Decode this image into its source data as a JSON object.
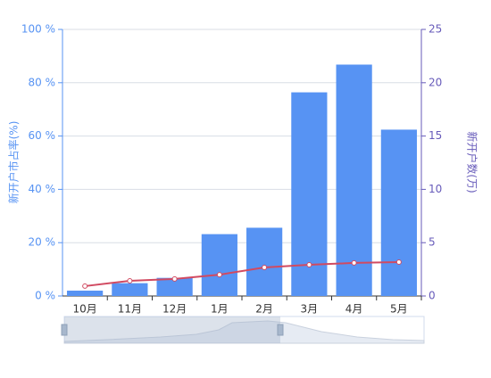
{
  "chart_data": {
    "type": "bar",
    "categories": [
      "10月",
      "11月",
      "12月",
      "1月",
      "2月",
      "3月",
      "4月",
      "5月"
    ],
    "y_label": "新开户市占率(%)",
    "y2_label": "新开户数(万)",
    "ylim": [
      0,
      100
    ],
    "yticks": [
      {
        "value": 0,
        "label": "0 %"
      },
      {
        "value": 20,
        "label": "20 %"
      },
      {
        "value": 40,
        "label": "40 %"
      },
      {
        "value": 60,
        "label": "60 %"
      },
      {
        "value": 80,
        "label": "80 %"
      },
      {
        "value": 100,
        "label": "100 %"
      }
    ],
    "y2lim": [
      0,
      25
    ],
    "y2ticks": [
      0,
      5,
      10,
      15,
      20,
      25
    ],
    "grid": true,
    "y_color": "#5793f3",
    "y2_color": "#675bba",
    "series": [
      {
        "type": "bar",
        "axis": "y2",
        "color": "#5793f3",
        "values": [
          0.5,
          1.2,
          1.7,
          5.8,
          6.4,
          19.1,
          21.7,
          15.6
        ]
      },
      {
        "type": "line",
        "axis": "y",
        "color": "#d14a61",
        "values": [
          3.7,
          5.7,
          6.4,
          8.0,
          10.7,
          11.7,
          12.4,
          12.7
        ]
      }
    ]
  }
}
